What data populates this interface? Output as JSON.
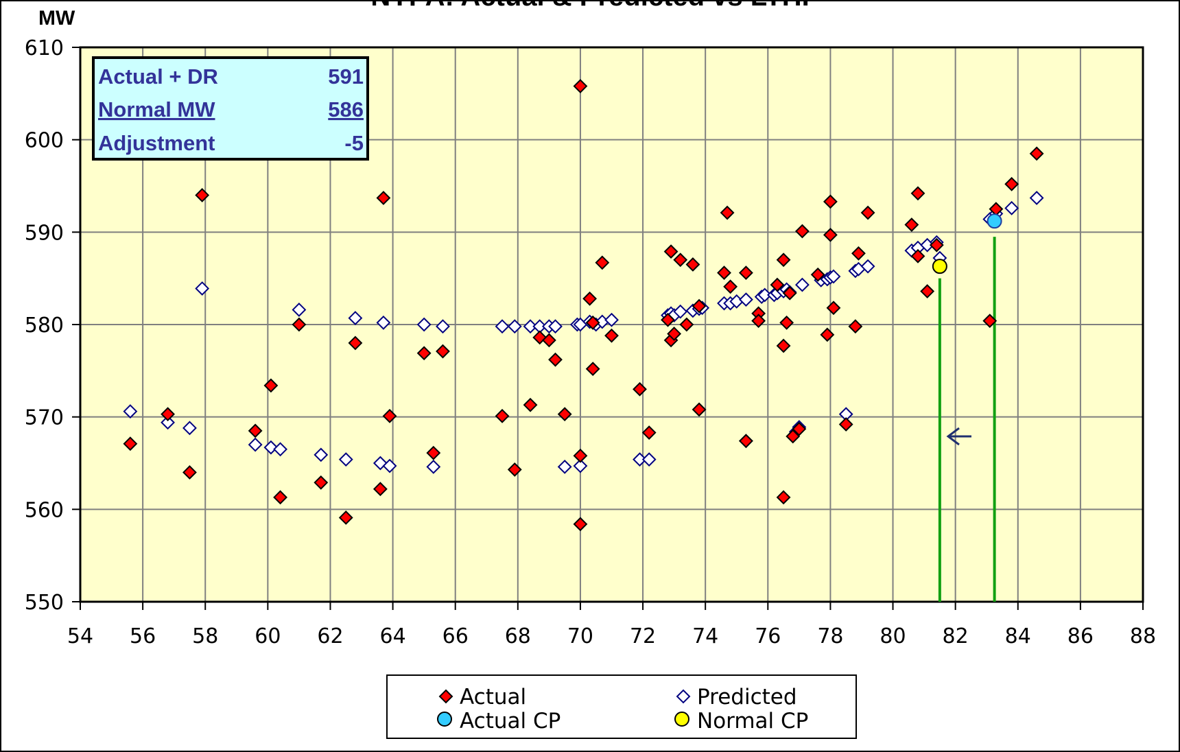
{
  "chart_data": {
    "type": "scatter",
    "title": "NYPA: Actual & Predicted vs LTHI",
    "ylabel": "MW",
    "xlim": [
      54,
      88
    ],
    "ylim": [
      550,
      610
    ],
    "x_ticks": [
      54,
      56,
      58,
      60,
      62,
      64,
      66,
      68,
      70,
      72,
      74,
      76,
      78,
      80,
      82,
      84,
      86,
      88
    ],
    "y_ticks": [
      550,
      560,
      570,
      580,
      590,
      600,
      610
    ],
    "grid": true,
    "legend_position": "bottom-center",
    "colors": {
      "plot_background": "#FFFFCC",
      "actual_fill": "#FF0000",
      "predicted_stroke": "#000080",
      "actual_cp_fill": "#33CCFF",
      "normal_cp_fill": "#FFFF00",
      "cp_line": "#11A011",
      "info_box_background": "#CCFFFF",
      "info_box_text": "#333399"
    },
    "series": [
      {
        "name": "Actual",
        "marker": "diamond-filled",
        "points": [
          [
            55.6,
            567.1
          ],
          [
            56.8,
            570.3
          ],
          [
            57.5,
            564.0
          ],
          [
            57.9,
            594.0
          ],
          [
            59.6,
            568.5
          ],
          [
            60.1,
            573.4
          ],
          [
            60.4,
            561.3
          ],
          [
            61.0,
            580.0
          ],
          [
            61.7,
            562.9
          ],
          [
            62.5,
            559.1
          ],
          [
            62.8,
            578.0
          ],
          [
            63.6,
            562.2
          ],
          [
            63.7,
            593.7
          ],
          [
            63.9,
            570.1
          ],
          [
            65.0,
            576.9
          ],
          [
            65.3,
            566.1
          ],
          [
            65.6,
            577.1
          ],
          [
            67.5,
            570.1
          ],
          [
            67.9,
            564.3
          ],
          [
            68.4,
            571.3
          ],
          [
            68.7,
            578.6
          ],
          [
            69.0,
            578.3
          ],
          [
            69.2,
            576.2
          ],
          [
            69.5,
            570.3
          ],
          [
            70.0,
            605.8
          ],
          [
            70.0,
            565.8
          ],
          [
            70.0,
            558.4
          ],
          [
            70.3,
            582.8
          ],
          [
            70.4,
            580.2
          ],
          [
            70.4,
            575.2
          ],
          [
            70.7,
            586.7
          ],
          [
            71.0,
            578.8
          ],
          [
            71.9,
            573.0
          ],
          [
            72.2,
            568.3
          ],
          [
            72.8,
            580.5
          ],
          [
            72.9,
            587.9
          ],
          [
            72.9,
            578.3
          ],
          [
            73.0,
            579.0
          ],
          [
            73.2,
            587.0
          ],
          [
            73.4,
            580.0
          ],
          [
            73.6,
            586.5
          ],
          [
            73.8,
            582.0
          ],
          [
            73.8,
            570.8
          ],
          [
            74.6,
            585.6
          ],
          [
            74.7,
            592.1
          ],
          [
            74.8,
            584.1
          ],
          [
            75.3,
            585.6
          ],
          [
            75.3,
            567.4
          ],
          [
            75.7,
            581.2
          ],
          [
            75.7,
            580.4
          ],
          [
            76.3,
            584.3
          ],
          [
            76.5,
            587.0
          ],
          [
            76.5,
            561.3
          ],
          [
            76.5,
            577.7
          ],
          [
            76.6,
            580.2
          ],
          [
            76.7,
            583.4
          ],
          [
            76.8,
            567.9
          ],
          [
            77.0,
            568.7
          ],
          [
            77.1,
            590.1
          ],
          [
            77.6,
            585.4
          ],
          [
            77.9,
            578.9
          ],
          [
            78.0,
            589.7
          ],
          [
            78.0,
            593.3
          ],
          [
            78.1,
            581.8
          ],
          [
            78.5,
            569.2
          ],
          [
            78.8,
            579.8
          ],
          [
            78.9,
            587.7
          ],
          [
            79.2,
            592.1
          ],
          [
            80.6,
            590.8
          ],
          [
            80.8,
            594.2
          ],
          [
            80.8,
            587.4
          ],
          [
            81.1,
            583.6
          ],
          [
            81.4,
            588.6
          ],
          [
            83.1,
            580.4
          ],
          [
            83.3,
            592.5
          ],
          [
            83.8,
            595.2
          ],
          [
            84.6,
            598.5
          ]
        ]
      },
      {
        "name": "Predicted",
        "marker": "diamond-open",
        "points": [
          [
            55.6,
            570.6
          ],
          [
            56.8,
            569.4
          ],
          [
            57.5,
            568.8
          ],
          [
            57.9,
            583.9
          ],
          [
            59.6,
            567.0
          ],
          [
            60.1,
            566.7
          ],
          [
            60.4,
            566.5
          ],
          [
            61.0,
            581.6
          ],
          [
            61.7,
            565.9
          ],
          [
            62.5,
            565.4
          ],
          [
            62.8,
            580.7
          ],
          [
            63.6,
            565.0
          ],
          [
            63.7,
            580.2
          ],
          [
            63.9,
            564.7
          ],
          [
            65.0,
            580.0
          ],
          [
            65.3,
            564.6
          ],
          [
            65.6,
            579.8
          ],
          [
            67.5,
            579.8
          ],
          [
            67.9,
            579.8
          ],
          [
            68.4,
            579.8
          ],
          [
            68.7,
            579.8
          ],
          [
            69.0,
            579.8
          ],
          [
            69.2,
            579.8
          ],
          [
            69.5,
            564.6
          ],
          [
            69.9,
            580.0
          ],
          [
            70.0,
            580.0
          ],
          [
            70.0,
            564.7
          ],
          [
            70.3,
            580.3
          ],
          [
            70.4,
            580.2
          ],
          [
            70.5,
            580.0
          ],
          [
            70.7,
            580.3
          ],
          [
            71.0,
            580.5
          ],
          [
            71.9,
            565.4
          ],
          [
            72.2,
            565.4
          ],
          [
            72.8,
            581.0
          ],
          [
            72.9,
            581.2
          ],
          [
            73.0,
            581.0
          ],
          [
            73.2,
            581.4
          ],
          [
            73.6,
            581.5
          ],
          [
            73.8,
            581.7
          ],
          [
            73.9,
            581.8
          ],
          [
            74.6,
            582.3
          ],
          [
            74.8,
            582.3
          ],
          [
            75.0,
            582.5
          ],
          [
            75.3,
            582.7
          ],
          [
            75.3,
            567.4
          ],
          [
            75.8,
            583.0
          ],
          [
            75.9,
            583.2
          ],
          [
            76.2,
            583.2
          ],
          [
            76.3,
            583.4
          ],
          [
            76.5,
            583.6
          ],
          [
            76.6,
            583.8
          ],
          [
            76.7,
            583.5
          ],
          [
            76.9,
            568.4
          ],
          [
            77.0,
            568.9
          ],
          [
            77.1,
            584.3
          ],
          [
            77.7,
            584.8
          ],
          [
            77.9,
            584.9
          ],
          [
            78.0,
            585.1
          ],
          [
            78.1,
            585.2
          ],
          [
            78.5,
            570.3
          ],
          [
            78.8,
            585.8
          ],
          [
            78.9,
            586.0
          ],
          [
            79.2,
            586.3
          ],
          [
            80.6,
            588.0
          ],
          [
            80.8,
            588.3
          ],
          [
            81.1,
            588.6
          ],
          [
            81.4,
            588.9
          ],
          [
            81.5,
            587.2
          ],
          [
            83.1,
            591.4
          ],
          [
            83.3,
            592.0
          ],
          [
            83.8,
            592.6
          ],
          [
            84.6,
            593.7
          ]
        ]
      },
      {
        "name": "Actual CP",
        "marker": "circle",
        "points": [
          [
            83.25,
            591.2
          ]
        ]
      },
      {
        "name": "Normal CP",
        "marker": "circle",
        "points": [
          [
            81.5,
            586.3
          ]
        ]
      }
    ],
    "info_box": {
      "rows": [
        {
          "label": "Actual + DR",
          "value": "591"
        },
        {
          "label": "Normal MW",
          "value": "586"
        },
        {
          "label": "Adjustment",
          "value": "-5"
        }
      ]
    }
  }
}
